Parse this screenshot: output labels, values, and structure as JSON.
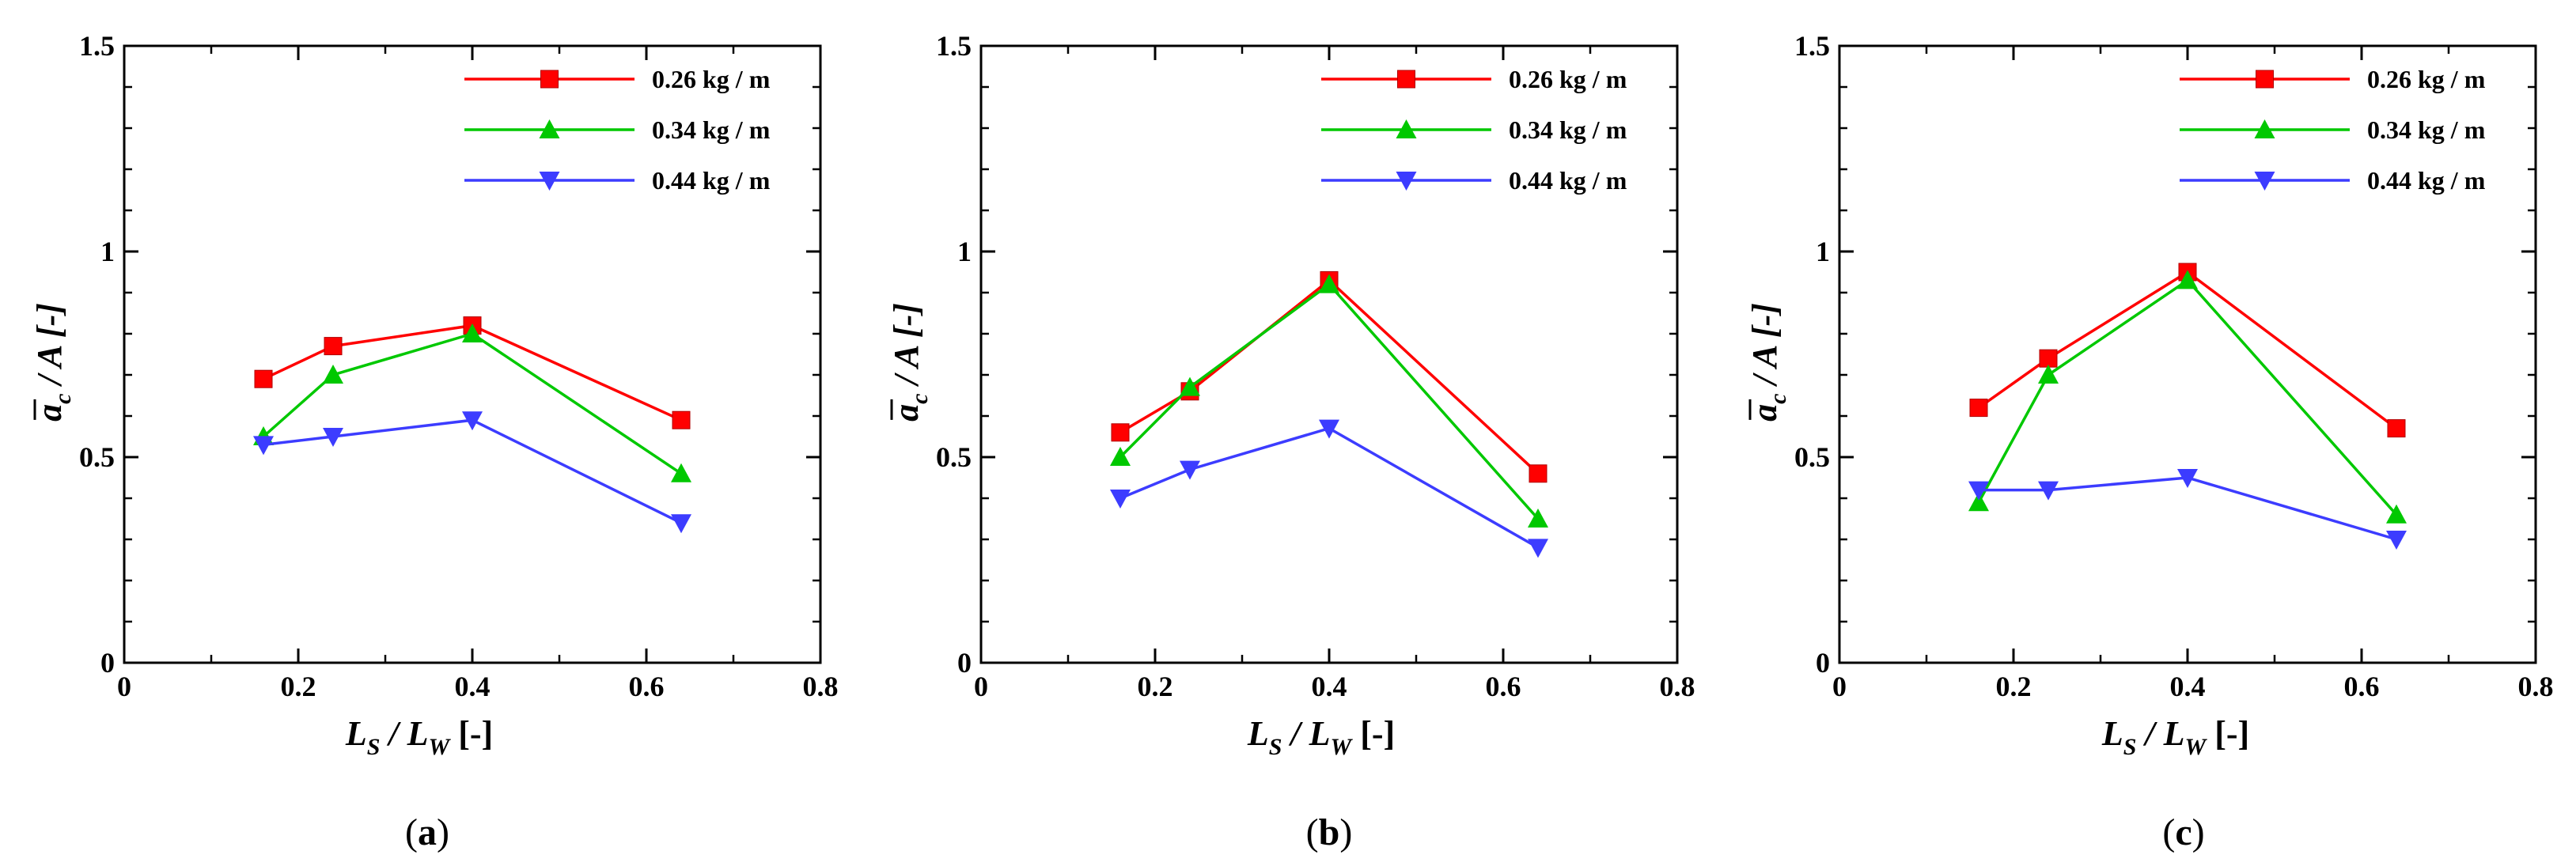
{
  "chart_data": [
    {
      "type": "line",
      "panel_label": "(a)",
      "x": [
        0.16,
        0.24,
        0.4,
        0.64
      ],
      "series": [
        {
          "name": "0.26 kg / m",
          "color": "#ff0000",
          "marker": "square",
          "values": [
            0.69,
            0.77,
            0.82,
            0.59
          ]
        },
        {
          "name": "0.34 kg / m",
          "color": "#00c800",
          "marker": "triangle-up",
          "values": [
            0.55,
            0.7,
            0.8,
            0.46
          ]
        },
        {
          "name": "0.44 kg / m",
          "color": "#3c3cff",
          "marker": "triangle-down",
          "values": [
            0.53,
            0.55,
            0.59,
            0.34
          ]
        }
      ],
      "xlim": [
        0,
        0.8
      ],
      "ylim": [
        0,
        1.5
      ],
      "xticks": [
        "0",
        "0.2",
        "0.4",
        "0.6",
        "0.8"
      ],
      "yticks": [
        "0",
        "0.5",
        "1",
        "1.5"
      ],
      "xlabel": {
        "main": "L",
        "sub1": "S",
        "mid": " / L",
        "sub2": "W",
        "end": " [-]"
      },
      "ylabel": {
        "main": "a",
        "sub": "c",
        "end": " / A [-]"
      }
    },
    {
      "type": "line",
      "panel_label": "(b)",
      "x": [
        0.16,
        0.24,
        0.4,
        0.64
      ],
      "series": [
        {
          "name": "0.26 kg / m",
          "color": "#ff0000",
          "marker": "square",
          "values": [
            0.56,
            0.66,
            0.93,
            0.46
          ]
        },
        {
          "name": "0.34 kg / m",
          "color": "#00c800",
          "marker": "triangle-up",
          "values": [
            0.5,
            0.67,
            0.92,
            0.35
          ]
        },
        {
          "name": "0.44 kg / m",
          "color": "#3c3cff",
          "marker": "triangle-down",
          "values": [
            0.4,
            0.47,
            0.57,
            0.28
          ]
        }
      ],
      "xlim": [
        0,
        0.8
      ],
      "ylim": [
        0,
        1.5
      ],
      "xticks": [
        "0",
        "0.2",
        "0.4",
        "0.6",
        "0.8"
      ],
      "yticks": [
        "0",
        "0.5",
        "1",
        "1.5"
      ],
      "xlabel": {
        "main": "L",
        "sub1": "S",
        "mid": " / L",
        "sub2": "W",
        "end": " [-]"
      },
      "ylabel": {
        "main": "a",
        "sub": "c",
        "end": " / A [-]"
      }
    },
    {
      "type": "line",
      "panel_label": "(c)",
      "x": [
        0.16,
        0.24,
        0.4,
        0.64
      ],
      "series": [
        {
          "name": "0.26 kg / m",
          "color": "#ff0000",
          "marker": "square",
          "values": [
            0.62,
            0.74,
            0.95,
            0.57
          ]
        },
        {
          "name": "0.34 kg / m",
          "color": "#00c800",
          "marker": "triangle-up",
          "values": [
            0.39,
            0.7,
            0.93,
            0.36
          ]
        },
        {
          "name": "0.44 kg / m",
          "color": "#3c3cff",
          "marker": "triangle-down",
          "values": [
            0.42,
            0.42,
            0.45,
            0.3
          ]
        }
      ],
      "xlim": [
        0,
        0.8
      ],
      "ylim": [
        0,
        1.5
      ],
      "xticks": [
        "0",
        "0.2",
        "0.4",
        "0.6",
        "0.8"
      ],
      "yticks": [
        "0",
        "0.5",
        "1",
        "1.5"
      ],
      "xlabel": {
        "main": "L",
        "sub1": "S",
        "mid": " / L",
        "sub2": "W",
        "end": " [-]"
      },
      "ylabel": {
        "main": "a",
        "sub": "c",
        "end": " / A [-]"
      }
    }
  ]
}
